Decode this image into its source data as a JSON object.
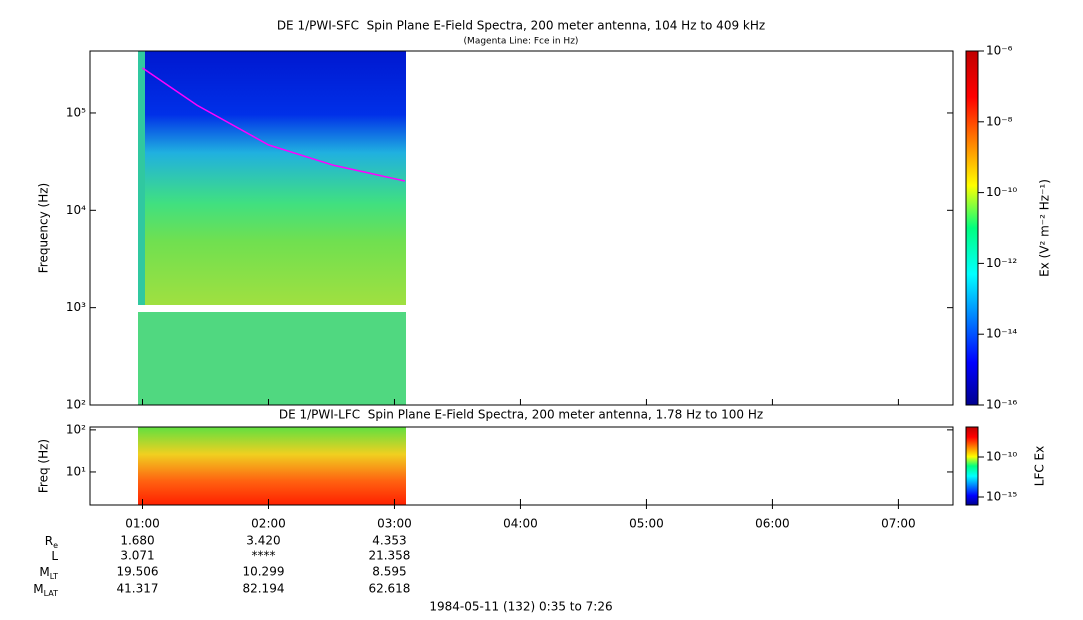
{
  "chart_data": [
    {
      "type": "spectrogram",
      "title": "DE 1/PWI-SFC  Spin Plane E-Field Spectra, 200 meter antenna, 104 Hz to 409 kHz",
      "subtitle": "(Magenta Line: Fce in Hz)",
      "y_label": "Frequency (Hz)",
      "log_y": true,
      "xlim": [
        35,
        446
      ],
      "ylim": [
        100,
        433000
      ],
      "yticks": [
        {
          "value": 100,
          "label": "10²"
        },
        {
          "value": 1000,
          "label": "10³"
        },
        {
          "value": 10000,
          "label": "10⁴"
        },
        {
          "value": 100000,
          "label": "10⁵"
        }
      ],
      "colorbar": {
        "label": "Ex (V² m⁻² Hz⁻¹)",
        "lim": [
          1e-16,
          1e-06
        ],
        "ticks": [
          {
            "value": 1e-16,
            "label": "10⁻¹⁶"
          },
          {
            "value": 1e-14,
            "label": "10⁻¹⁴"
          },
          {
            "value": 1e-12,
            "label": "10⁻¹²"
          },
          {
            "value": 1e-10,
            "label": "10⁻¹⁰"
          },
          {
            "value": 1e-08,
            "label": "10⁻⁸"
          },
          {
            "value": 1e-06,
            "label": "10⁻⁶"
          }
        ]
      },
      "series": [
        {
          "name": "Fce",
          "color": "#ff00ff",
          "x": [
            60,
            86,
            120,
            151,
            185
          ],
          "values": [
            290000,
            120000,
            47000,
            29000,
            20000
          ]
        }
      ]
    },
    {
      "type": "spectrogram",
      "title": "DE 1/PWI-LFC  Spin Plane E-Field Spectra, 200 meter antenna, 1.78 Hz to 100 Hz",
      "y_label": "Freq (Hz)",
      "log_y": true,
      "xlim": [
        35,
        446
      ],
      "ylim": [
        1.64,
        117
      ],
      "yticks": [
        {
          "value": 10,
          "label": "10¹"
        },
        {
          "value": 100,
          "label": "10²"
        }
      ],
      "xticks": [
        {
          "value": 60,
          "label": "01:00"
        },
        {
          "value": 120,
          "label": "02:00"
        },
        {
          "value": 180,
          "label": "03:00"
        },
        {
          "value": 240,
          "label": "04:00"
        },
        {
          "value": 300,
          "label": "05:00"
        },
        {
          "value": 360,
          "label": "06:00"
        },
        {
          "value": 420,
          "label": "07:00"
        }
      ],
      "colorbar": {
        "label": "LFC Ex",
        "lim": [
          1e-16,
          5.6e-07
        ],
        "ticks": [
          {
            "value": 1e-15,
            "label": "10⁻¹⁵"
          },
          {
            "value": 1e-10,
            "label": "10⁻¹⁰"
          }
        ]
      }
    }
  ],
  "ephemeris": [
    {
      "name": "R",
      "sub": "e",
      "values": [
        "1.680",
        "3.420",
        "4.353"
      ]
    },
    {
      "name": "L",
      "values": [
        "3.071",
        "****",
        "21.358"
      ]
    },
    {
      "name": "M",
      "sub": "LT",
      "values": [
        "19.506",
        "10.299",
        "8.595"
      ]
    },
    {
      "name": "M",
      "sub": "LAT",
      "values": [
        "41.317",
        "82.194",
        "62.618"
      ]
    }
  ],
  "footer": "1984-05-11 (132) 0:35 to 7:26"
}
